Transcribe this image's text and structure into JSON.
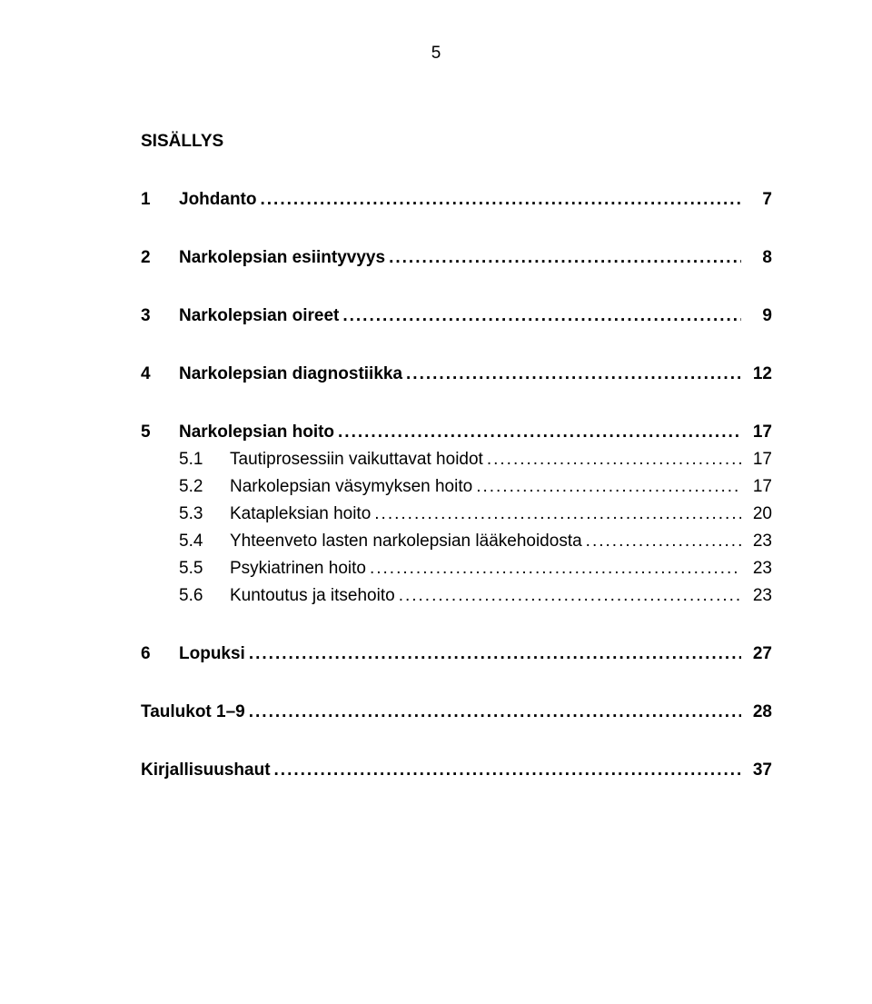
{
  "page_number": "5",
  "heading": "SISÄLLYS",
  "entries": [
    {
      "level": 1,
      "num": "1",
      "title": "Johdanto",
      "page": "7"
    },
    {
      "level": 1,
      "num": "2",
      "title": "Narkolepsian esiintyvyys",
      "page": "8"
    },
    {
      "level": 1,
      "num": "3",
      "title": "Narkolepsian oireet",
      "page": "9"
    },
    {
      "level": 1,
      "num": "4",
      "title": "Narkolepsian diagnostiikka",
      "page": "12"
    },
    {
      "level": 1,
      "num": "5",
      "title": "Narkolepsian hoito",
      "page": "17"
    }
  ],
  "sub_entries": [
    {
      "num": "5.1",
      "title": "Tautiprosessiin vaikuttavat hoidot",
      "page": "17"
    },
    {
      "num": "5.2",
      "title": "Narkolepsian väsymyksen hoito",
      "page": "17"
    },
    {
      "num": "5.3",
      "title": "Katapleksian hoito",
      "page": "20"
    },
    {
      "num": "5.4",
      "title": "Yhteenveto lasten narkolepsian lääkehoidosta",
      "page": "23"
    },
    {
      "num": "5.5",
      "title": "Psykiatrinen hoito",
      "page": "23"
    },
    {
      "num": "5.6",
      "title": "Kuntoutus ja itsehoito",
      "page": "23"
    }
  ],
  "tail_entries": [
    {
      "level": 1,
      "num": "6",
      "title": "Lopuksi",
      "page": "27"
    },
    {
      "level": 1,
      "num": "",
      "title": "Taulukot 1–9",
      "page": "28"
    },
    {
      "level": 1,
      "num": "",
      "title": "Kirjallisuushaut",
      "page": "37"
    }
  ],
  "leader_dots": "...................................................................................................................................................."
}
